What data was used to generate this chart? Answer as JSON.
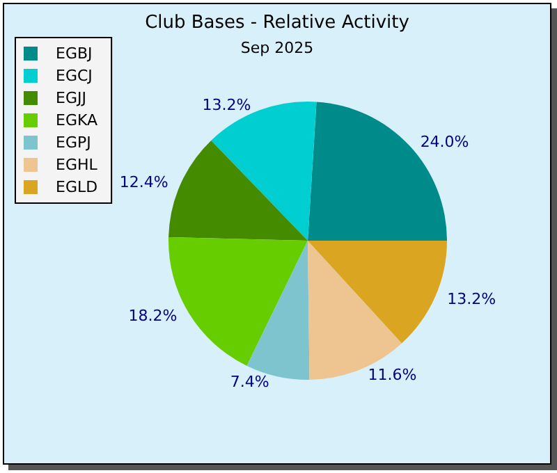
{
  "chart_data": {
    "type": "pie",
    "title": "Club Bases - Relative Activity",
    "subtitle": "Sep 2025",
    "categories": [
      "EGBJ",
      "EGCJ",
      "EGJJ",
      "EGKA",
      "EGPJ",
      "EGHL",
      "EGLD"
    ],
    "values": [
      24.0,
      13.2,
      12.4,
      18.2,
      7.4,
      11.6,
      13.2
    ],
    "value_labels": [
      "24.0%",
      "13.2%",
      "12.4%",
      "18.2%",
      "7.4%",
      "11.6%",
      "13.2%"
    ],
    "colors": [
      "#008b8b",
      "#00ced1",
      "#458b00",
      "#66cd00",
      "#7ec4cf",
      "#eec591",
      "#daa520"
    ],
    "legend": "top left"
  }
}
